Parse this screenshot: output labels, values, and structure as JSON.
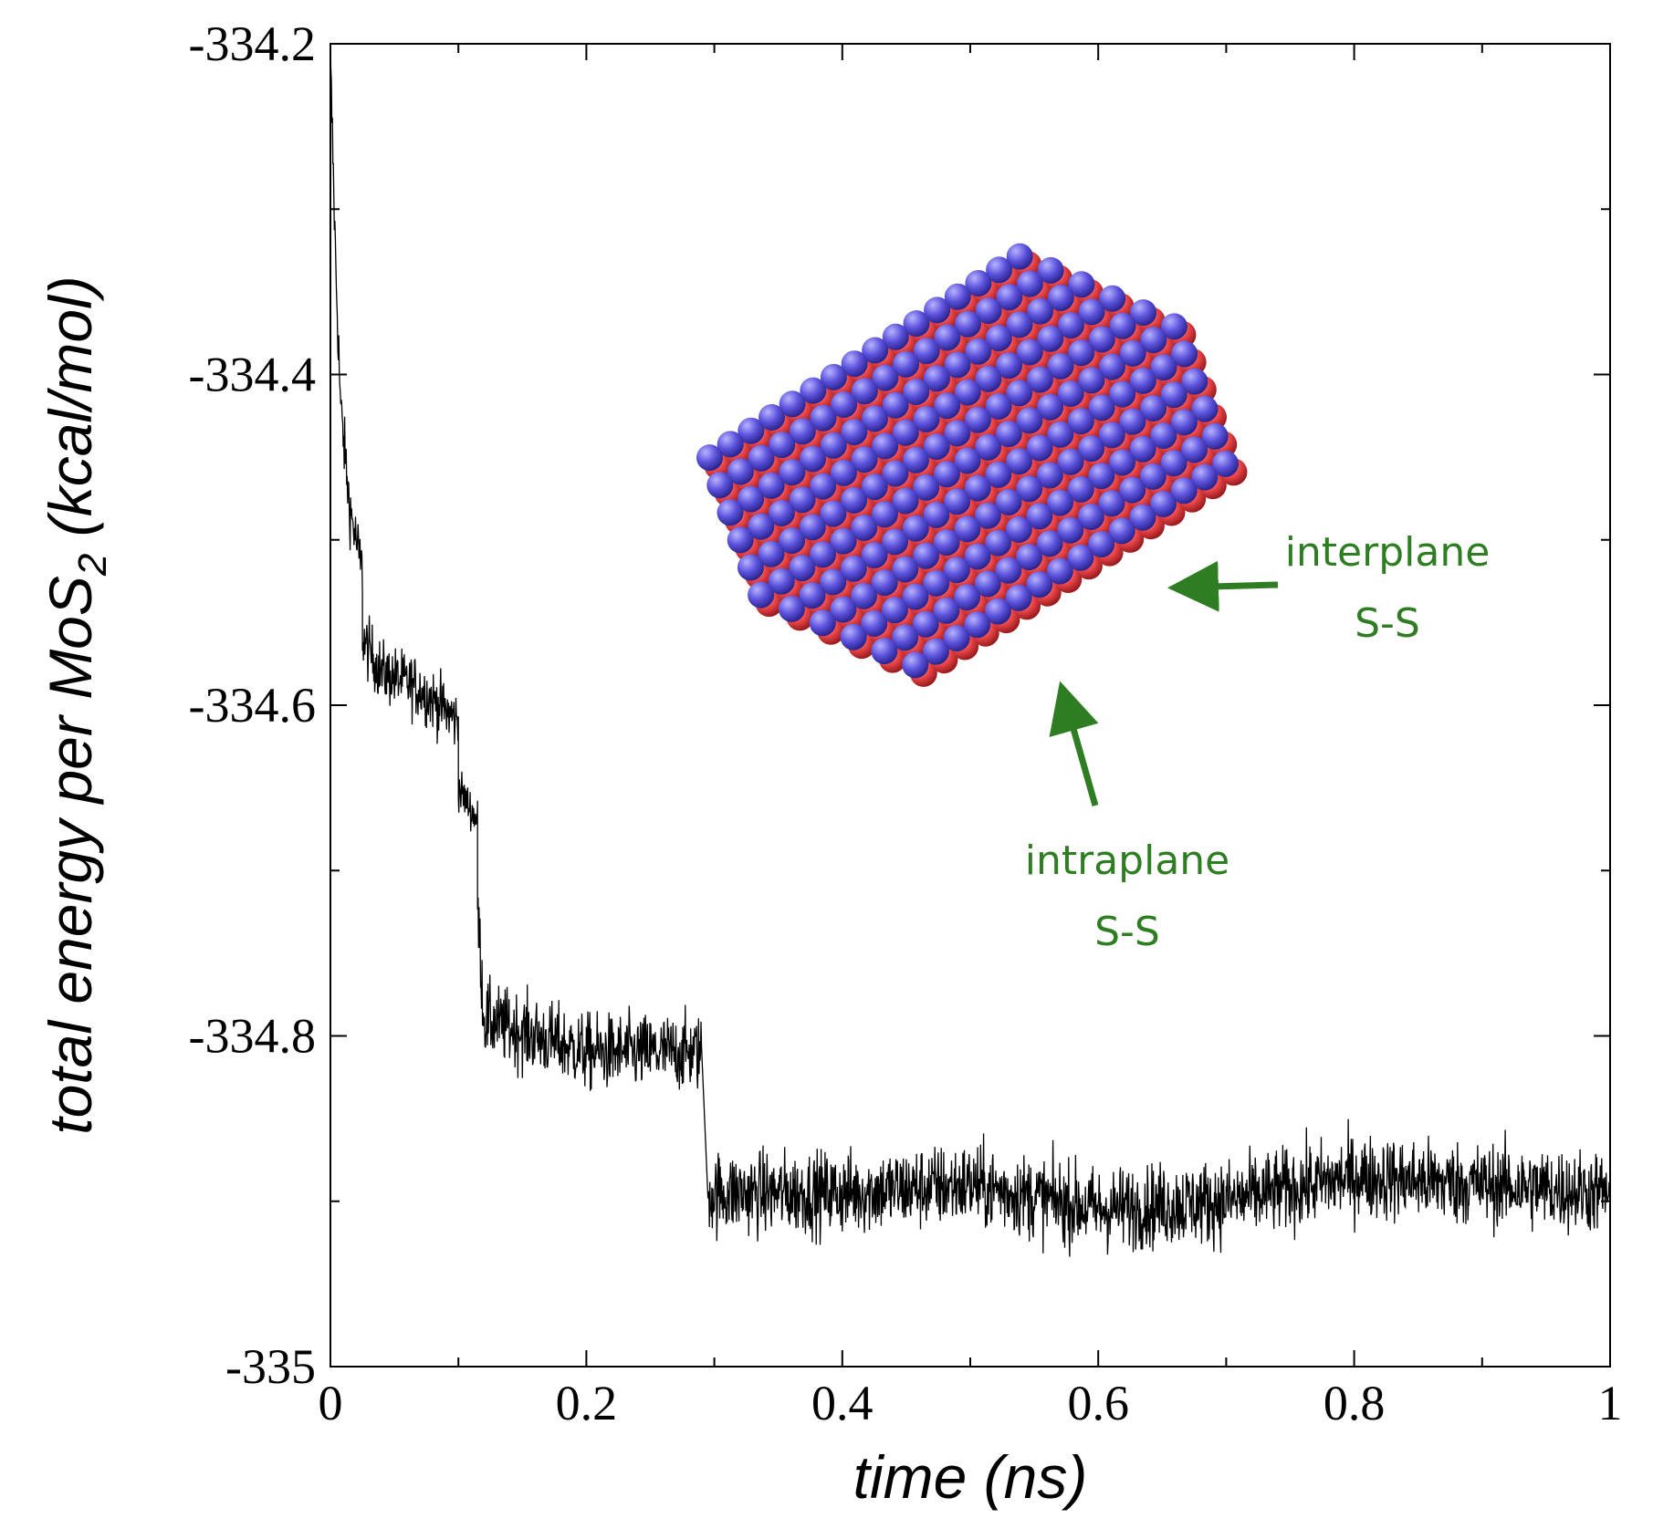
{
  "chart_data": {
    "type": "line",
    "title": "",
    "xlabel": "time (ns)",
    "ylabel_main": "total energy per MoS",
    "ylabel_subscript": "2",
    "ylabel_units": " (kcal/mol)",
    "xlim": [
      0,
      1
    ],
    "ylim": [
      -335,
      -334.2
    ],
    "xticks": [
      0,
      0.2,
      0.4,
      0.6,
      0.8,
      1
    ],
    "xtick_labels": [
      "0",
      "0.2",
      "0.4",
      "0.6",
      "0.8",
      "1"
    ],
    "yticks": [
      -335,
      -334.8,
      -334.6,
      -334.4,
      -334.2
    ],
    "ytick_labels": [
      "-335",
      "-334.8",
      "-334.6",
      "-334.4",
      "-334.2"
    ],
    "grid": false,
    "series": [
      {
        "name": "total energy",
        "color": "#000000",
        "segments": [
          {
            "x": [
              0,
              0.004,
              0.008,
              0.015,
              0.025
            ],
            "y": [
              -334.21,
              -334.33,
              -334.42,
              -334.48,
              -334.52
            ],
            "noise": 0.018
          },
          {
            "x": [
              0.025,
              0.04,
              0.07,
              0.1
            ],
            "y": [
              -334.56,
              -334.58,
              -334.59,
              -334.61
            ],
            "noise": 0.018
          },
          {
            "x": [
              0.1,
              0.115
            ],
            "y": [
              -334.65,
              -334.67
            ],
            "noise": 0.012
          },
          {
            "x": [
              0.115,
              0.12,
              0.2,
              0.29
            ],
            "y": [
              -334.72,
              -334.79,
              -334.81,
              -334.81
            ],
            "noise": 0.022
          },
          {
            "x": [
              0.295,
              0.4,
              0.5,
              0.6,
              0.7,
              0.8,
              0.9,
              1.0
            ],
            "y": [
              -334.895,
              -334.895,
              -334.89,
              -334.905,
              -334.9,
              -334.885,
              -334.89,
              -334.895
            ],
            "noise": 0.024
          }
        ]
      }
    ],
    "annotations": [
      {
        "name": "interplane",
        "lines": [
          "interplane",
          "S-S"
        ],
        "color": "#2e7d22"
      },
      {
        "name": "intraplane",
        "lines": [
          "intraplane",
          "S-S"
        ],
        "color": "#2e7d22"
      }
    ],
    "inset": {
      "description_colors": {
        "mo_atom": "#e8474a",
        "s_atom": "#5a52d6"
      }
    }
  }
}
